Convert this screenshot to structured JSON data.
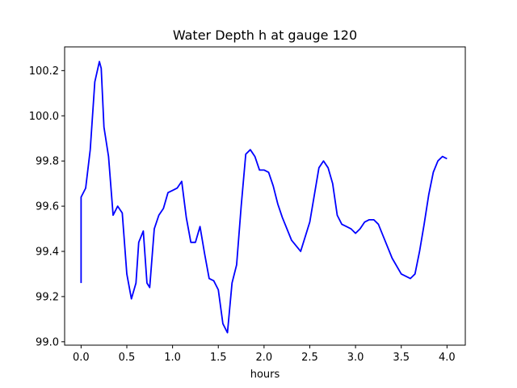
{
  "chart_data": {
    "type": "line",
    "title": "Water Depth h at gauge 120",
    "xlabel": "hours",
    "ylabel": "",
    "xlim": [
      -0.18,
      4.2
    ],
    "ylim": [
      98.985,
      100.305
    ],
    "xticks": [
      0.0,
      0.5,
      1.0,
      1.5,
      2.0,
      2.5,
      3.0,
      3.5,
      4.0
    ],
    "xtick_labels": [
      "0.0",
      "0.5",
      "1.0",
      "1.5",
      "2.0",
      "2.5",
      "3.0",
      "3.5",
      "4.0"
    ],
    "yticks": [
      99.0,
      99.2,
      99.4,
      99.6,
      99.8,
      100.0,
      100.2
    ],
    "ytick_labels": [
      "99.0",
      "99.2",
      "99.4",
      "99.6",
      "99.8",
      "100.0",
      "100.2"
    ],
    "grid": false,
    "series": [
      {
        "color": "#0000ff",
        "x": [
          0.0,
          0.0,
          0.05,
          0.1,
          0.15,
          0.2,
          0.22,
          0.25,
          0.3,
          0.35,
          0.4,
          0.45,
          0.5,
          0.55,
          0.6,
          0.63,
          0.68,
          0.72,
          0.75,
          0.8,
          0.85,
          0.9,
          0.95,
          1.0,
          1.05,
          1.1,
          1.15,
          1.2,
          1.25,
          1.3,
          1.35,
          1.4,
          1.45,
          1.5,
          1.55,
          1.6,
          1.65,
          1.7,
          1.75,
          1.8,
          1.85,
          1.9,
          1.95,
          2.0,
          2.05,
          2.1,
          2.15,
          2.2,
          2.3,
          2.4,
          2.5,
          2.55,
          2.6,
          2.65,
          2.7,
          2.75,
          2.8,
          2.85,
          2.9,
          2.95,
          3.0,
          3.05,
          3.1,
          3.15,
          3.2,
          3.25,
          3.3,
          3.4,
          3.5,
          3.6,
          3.65,
          3.7,
          3.75,
          3.8,
          3.85,
          3.9,
          3.95,
          4.0
        ],
        "y": [
          99.26,
          99.64,
          99.68,
          99.85,
          100.15,
          100.24,
          100.21,
          99.95,
          99.82,
          99.56,
          99.6,
          99.57,
          99.3,
          99.19,
          99.26,
          99.44,
          99.49,
          99.26,
          99.24,
          99.5,
          99.56,
          99.59,
          99.66,
          99.67,
          99.68,
          99.71,
          99.55,
          99.44,
          99.44,
          99.51,
          99.39,
          99.28,
          99.27,
          99.23,
          99.08,
          99.04,
          99.26,
          99.34,
          99.6,
          99.83,
          99.85,
          99.82,
          99.76,
          99.76,
          99.75,
          99.69,
          99.61,
          99.55,
          99.45,
          99.4,
          99.53,
          99.65,
          99.77,
          99.8,
          99.77,
          99.7,
          99.56,
          99.52,
          99.51,
          99.5,
          99.48,
          99.5,
          99.53,
          99.54,
          99.54,
          99.52,
          99.47,
          99.37,
          99.3,
          99.28,
          99.3,
          99.4,
          99.52,
          99.65,
          99.75,
          99.8,
          99.82,
          99.81
        ]
      }
    ]
  }
}
